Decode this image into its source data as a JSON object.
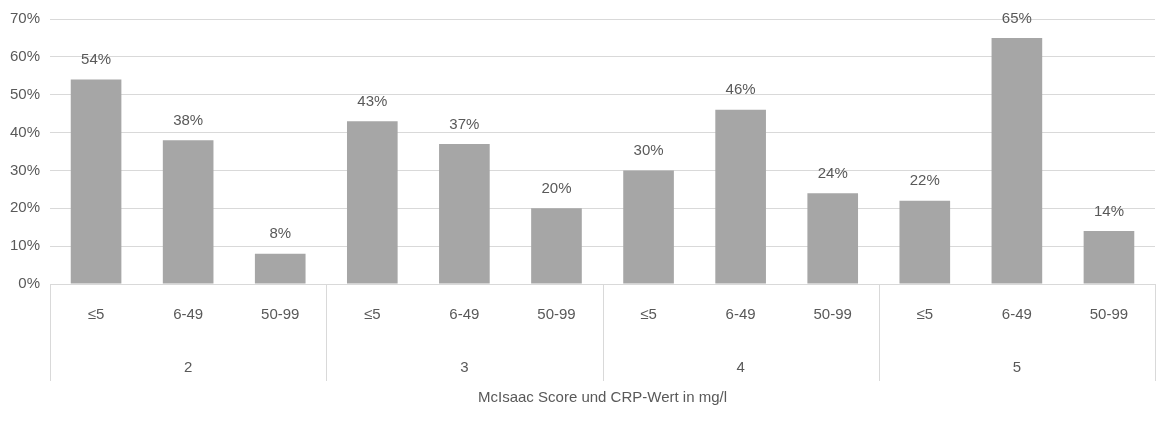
{
  "chart_data": {
    "type": "bar",
    "xlabel": "McIsaac Score und CRP-Wert in mg/l",
    "categories": [
      "≤5",
      "6-49",
      "50-99",
      "≤5",
      "6-49",
      "50-99",
      "≤5",
      "6-49",
      "50-99",
      "≤5",
      "6-49",
      "50-99"
    ],
    "values": [
      54,
      38,
      8,
      43,
      37,
      20,
      30,
      46,
      24,
      22,
      65,
      14
    ],
    "value_labels": [
      "54%",
      "38%",
      "8%",
      "43%",
      "37%",
      "20%",
      "30%",
      "46%",
      "24%",
      "22%",
      "65%",
      "14%"
    ],
    "color": "#a6a6a6",
    "ylim": [
      0,
      70
    ],
    "yticks": [
      {
        "value": 0,
        "label": "0%"
      },
      {
        "value": 10,
        "label": "10%"
      },
      {
        "value": 20,
        "label": "20%"
      },
      {
        "value": 30,
        "label": "30%"
      },
      {
        "value": 40,
        "label": "40%"
      },
      {
        "value": 50,
        "label": "50%"
      },
      {
        "value": 60,
        "label": "60%"
      },
      {
        "value": 70,
        "label": "70%"
      }
    ],
    "annotations": [
      "2",
      "3",
      "4",
      "5"
    ],
    "grid": "y",
    "legend": false
  }
}
